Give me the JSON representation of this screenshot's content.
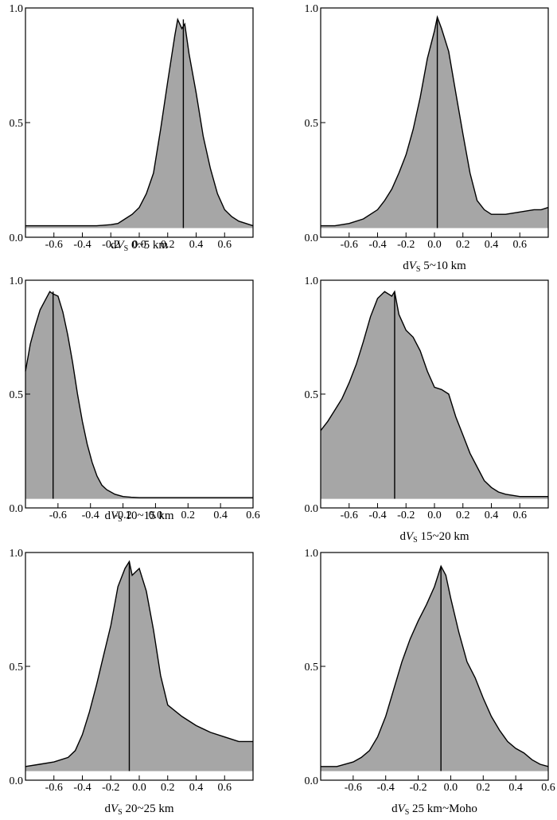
{
  "figure": {
    "fill_color": "#a6a6a6",
    "line_color": "#000000",
    "background": "#ffffff"
  },
  "chart_data": [
    {
      "type": "area",
      "title": "",
      "xlabel": {
        "prefix": "d",
        "var": "V",
        "sub": "S",
        "suffix": " 0~5 km"
      },
      "ylabel": "",
      "xlim": [
        -0.8,
        0.8
      ],
      "ylim": [
        0,
        1
      ],
      "xticks": [
        -0.6,
        -0.4,
        -0.2,
        0.0,
        0.2,
        0.4,
        0.6
      ],
      "xtick_labels": [
        "-0.6",
        "-0.4",
        "-0.2",
        "0.0",
        "0.2",
        "0.4",
        "0.6"
      ],
      "yticks": [
        0,
        0.5,
        1
      ],
      "ytick_labels": [
        "0.0",
        "0.5",
        "1.0"
      ],
      "baseline": 0.04,
      "vline_x": 0.31,
      "x": [
        -0.8,
        -0.3,
        -0.2,
        -0.15,
        -0.1,
        -0.05,
        0.0,
        0.05,
        0.1,
        0.15,
        0.2,
        0.25,
        0.27,
        0.3,
        0.32,
        0.35,
        0.4,
        0.45,
        0.5,
        0.55,
        0.6,
        0.65,
        0.7,
        0.75,
        0.8
      ],
      "y": [
        0.05,
        0.05,
        0.055,
        0.06,
        0.08,
        0.1,
        0.13,
        0.19,
        0.28,
        0.47,
        0.68,
        0.88,
        0.95,
        0.91,
        0.93,
        0.8,
        0.63,
        0.44,
        0.3,
        0.19,
        0.12,
        0.09,
        0.07,
        0.06,
        0.05
      ]
    },
    {
      "type": "area",
      "title": "",
      "xlabel": {
        "prefix": "d",
        "var": "V",
        "sub": "S",
        "suffix": " 5~10 km"
      },
      "ylabel": "",
      "xlim": [
        -0.8,
        0.8
      ],
      "ylim": [
        0,
        1
      ],
      "xticks": [
        -0.6,
        -0.4,
        -0.2,
        0.0,
        0.2,
        0.4,
        0.6
      ],
      "xtick_labels": [
        "-0.6",
        "-0.4",
        "-0.2",
        "0.0",
        "0.2",
        "0.4",
        "0.6"
      ],
      "yticks": [
        0,
        0.5,
        1
      ],
      "ytick_labels": [
        "0.0",
        "0.5",
        "1.0"
      ],
      "baseline": 0.04,
      "vline_x": 0.02,
      "x": [
        -0.8,
        -0.7,
        -0.6,
        -0.5,
        -0.4,
        -0.35,
        -0.3,
        -0.25,
        -0.2,
        -0.15,
        -0.1,
        -0.05,
        0.0,
        0.02,
        0.05,
        0.1,
        0.15,
        0.2,
        0.25,
        0.3,
        0.35,
        0.4,
        0.5,
        0.6,
        0.7,
        0.75,
        0.8
      ],
      "y": [
        0.05,
        0.05,
        0.06,
        0.08,
        0.12,
        0.16,
        0.21,
        0.28,
        0.36,
        0.47,
        0.61,
        0.78,
        0.9,
        0.96,
        0.91,
        0.81,
        0.63,
        0.45,
        0.28,
        0.16,
        0.12,
        0.1,
        0.1,
        0.11,
        0.12,
        0.12,
        0.13
      ]
    },
    {
      "type": "area",
      "title": "",
      "xlabel": {
        "prefix": "d",
        "var": "V",
        "sub": "S",
        "suffix": " 10~15 km"
      },
      "ylabel": "",
      "xlim": [
        -0.8,
        0.6
      ],
      "ylim": [
        0,
        1
      ],
      "xticks": [
        -0.6,
        -0.4,
        -0.2,
        0.0,
        0.2,
        0.4,
        0.6
      ],
      "xtick_labels": [
        "-0.6",
        "-0.4",
        "-0.2",
        "0.0",
        "0.2",
        "0.4",
        "0.6"
      ],
      "yticks": [
        0,
        0.5,
        1
      ],
      "ytick_labels": [
        "0.0",
        "0.5",
        "1.0"
      ],
      "baseline": 0.04,
      "vline_x": -0.63,
      "x": [
        -0.8,
        -0.77,
        -0.74,
        -0.71,
        -0.68,
        -0.65,
        -0.63,
        -0.6,
        -0.57,
        -0.54,
        -0.51,
        -0.48,
        -0.45,
        -0.42,
        -0.39,
        -0.36,
        -0.33,
        -0.3,
        -0.25,
        -0.2,
        -0.15,
        -0.1,
        0.0,
        0.2,
        0.4,
        0.6
      ],
      "y": [
        0.6,
        0.72,
        0.8,
        0.87,
        0.91,
        0.95,
        0.94,
        0.93,
        0.86,
        0.76,
        0.64,
        0.5,
        0.38,
        0.28,
        0.2,
        0.14,
        0.1,
        0.08,
        0.06,
        0.05,
        0.047,
        0.045,
        0.045,
        0.045,
        0.045,
        0.045
      ]
    },
    {
      "type": "area",
      "title": "",
      "xlabel": {
        "prefix": "d",
        "var": "V",
        "sub": "S",
        "suffix": " 15~20 km"
      },
      "ylabel": "",
      "xlim": [
        -0.8,
        0.8
      ],
      "ylim": [
        0,
        1
      ],
      "xticks": [
        -0.6,
        -0.4,
        -0.2,
        0.0,
        0.2,
        0.4,
        0.6
      ],
      "xtick_labels": [
        "-0.6",
        "-0.4",
        "-0.2",
        "0.0",
        "0.2",
        "0.4",
        "0.6"
      ],
      "yticks": [
        0,
        0.5,
        1
      ],
      "ytick_labels": [
        "0.0",
        "0.5",
        "1.0"
      ],
      "baseline": 0.04,
      "vline_x": -0.28,
      "x": [
        -0.8,
        -0.75,
        -0.7,
        -0.65,
        -0.6,
        -0.55,
        -0.5,
        -0.45,
        -0.4,
        -0.35,
        -0.3,
        -0.28,
        -0.25,
        -0.2,
        -0.15,
        -0.1,
        -0.05,
        0.0,
        0.05,
        0.1,
        0.15,
        0.2,
        0.25,
        0.3,
        0.35,
        0.4,
        0.45,
        0.5,
        0.6,
        0.7,
        0.8
      ],
      "y": [
        0.34,
        0.38,
        0.43,
        0.48,
        0.55,
        0.63,
        0.73,
        0.84,
        0.92,
        0.95,
        0.93,
        0.95,
        0.85,
        0.78,
        0.75,
        0.69,
        0.6,
        0.53,
        0.52,
        0.5,
        0.4,
        0.32,
        0.24,
        0.18,
        0.12,
        0.09,
        0.07,
        0.06,
        0.05,
        0.05,
        0.05
      ]
    },
    {
      "type": "area",
      "title": "",
      "xlabel": {
        "prefix": "d",
        "var": "V",
        "sub": "S",
        "suffix": " 20~25 km"
      },
      "ylabel": "",
      "xlim": [
        -0.8,
        0.8
      ],
      "ylim": [
        0,
        1
      ],
      "xticks": [
        -0.6,
        -0.4,
        -0.2,
        0.0,
        0.2,
        0.4,
        0.6
      ],
      "xtick_labels": [
        "-0.6",
        "-0.4",
        "-0.2",
        "0.0",
        "0.2",
        "0.4",
        "0.6"
      ],
      "yticks": [
        0,
        0.5,
        1
      ],
      "ytick_labels": [
        "0.0",
        "0.5",
        "1.0"
      ],
      "baseline": 0.04,
      "vline_x": -0.07,
      "x": [
        -0.8,
        -0.7,
        -0.6,
        -0.5,
        -0.45,
        -0.4,
        -0.35,
        -0.3,
        -0.25,
        -0.2,
        -0.15,
        -0.1,
        -0.07,
        -0.05,
        0.0,
        0.05,
        0.1,
        0.15,
        0.2,
        0.3,
        0.4,
        0.5,
        0.6,
        0.7,
        0.8
      ],
      "y": [
        0.06,
        0.07,
        0.08,
        0.1,
        0.13,
        0.2,
        0.3,
        0.42,
        0.55,
        0.68,
        0.85,
        0.93,
        0.96,
        0.9,
        0.93,
        0.83,
        0.66,
        0.46,
        0.33,
        0.28,
        0.24,
        0.21,
        0.19,
        0.17,
        0.17
      ]
    },
    {
      "type": "area",
      "title": "",
      "xlabel": {
        "prefix": "d",
        "var": "V",
        "sub": "S",
        "suffix": " 25 km~Moho"
      },
      "ylabel": "",
      "xlim": [
        -0.8,
        0.6
      ],
      "ylim": [
        0,
        1
      ],
      "xticks": [
        -0.6,
        -0.4,
        -0.2,
        0.0,
        0.2,
        0.4,
        0.6
      ],
      "xtick_labels": [
        "-0.6",
        "-0.4",
        "-0.2",
        "0.0",
        "0.2",
        "0.4",
        "0.6"
      ],
      "yticks": [
        0,
        0.5,
        1
      ],
      "ytick_labels": [
        "0.0",
        "0.5",
        "1.0"
      ],
      "baseline": 0.04,
      "vline_x": -0.06,
      "x": [
        -0.8,
        -0.7,
        -0.6,
        -0.55,
        -0.5,
        -0.45,
        -0.4,
        -0.35,
        -0.3,
        -0.25,
        -0.2,
        -0.15,
        -0.1,
        -0.06,
        -0.03,
        0.0,
        0.05,
        0.1,
        0.15,
        0.2,
        0.25,
        0.3,
        0.35,
        0.4,
        0.45,
        0.5,
        0.55,
        0.6
      ],
      "y": [
        0.06,
        0.06,
        0.08,
        0.1,
        0.13,
        0.19,
        0.28,
        0.4,
        0.52,
        0.62,
        0.7,
        0.77,
        0.85,
        0.94,
        0.9,
        0.8,
        0.65,
        0.52,
        0.45,
        0.36,
        0.28,
        0.22,
        0.17,
        0.14,
        0.12,
        0.09,
        0.07,
        0.06
      ]
    }
  ]
}
